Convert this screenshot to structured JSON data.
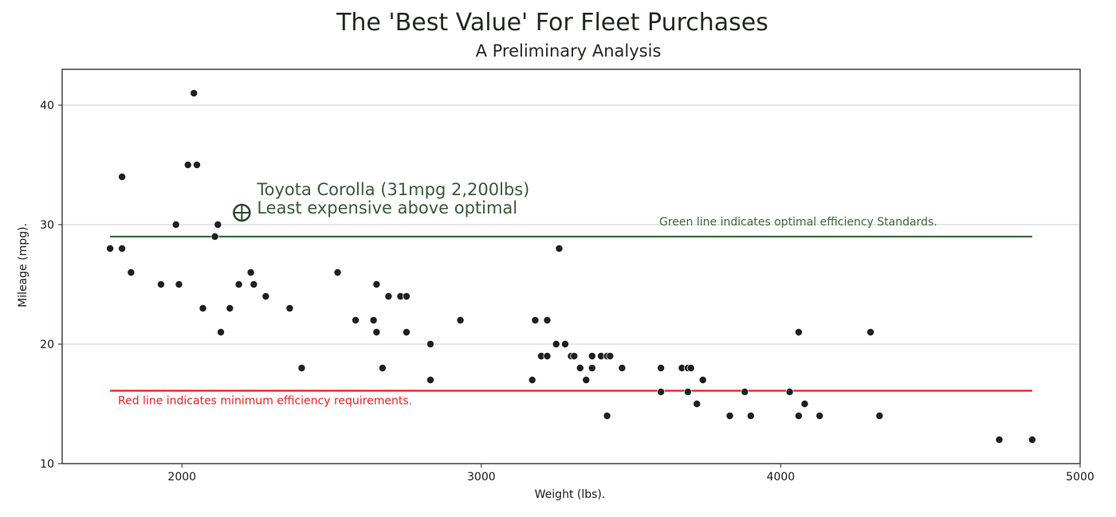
{
  "chart_data": {
    "type": "scatter",
    "title": "The 'Best Value' For Fleet Purchases",
    "subtitle": "A Preliminary Analysis",
    "xlabel": "Weight (lbs).",
    "ylabel": "Mileage (mpg).",
    "xlim": [
      1600,
      5000
    ],
    "ylim": [
      10,
      43
    ],
    "x_ticks": [
      2000,
      3000,
      4000,
      5000
    ],
    "y_ticks": [
      10,
      20,
      30,
      40
    ],
    "grid": "horizontal",
    "point_color": "#1f1f1f",
    "points": [
      {
        "x": 1760,
        "y": 28
      },
      {
        "x": 1800,
        "y": 34
      },
      {
        "x": 1800,
        "y": 28
      },
      {
        "x": 1830,
        "y": 26
      },
      {
        "x": 1930,
        "y": 25
      },
      {
        "x": 1980,
        "y": 30
      },
      {
        "x": 1990,
        "y": 25
      },
      {
        "x": 2020,
        "y": 35
      },
      {
        "x": 2040,
        "y": 41
      },
      {
        "x": 2050,
        "y": 35
      },
      {
        "x": 2070,
        "y": 23
      },
      {
        "x": 2110,
        "y": 29
      },
      {
        "x": 2120,
        "y": 30
      },
      {
        "x": 2130,
        "y": 21
      },
      {
        "x": 2160,
        "y": 23
      },
      {
        "x": 2190,
        "y": 25
      },
      {
        "x": 2230,
        "y": 26
      },
      {
        "x": 2240,
        "y": 25
      },
      {
        "x": 2280,
        "y": 24
      },
      {
        "x": 2360,
        "y": 23
      },
      {
        "x": 2400,
        "y": 18
      },
      {
        "x": 2520,
        "y": 26
      },
      {
        "x": 2580,
        "y": 22
      },
      {
        "x": 2640,
        "y": 22
      },
      {
        "x": 2650,
        "y": 25
      },
      {
        "x": 2650,
        "y": 21
      },
      {
        "x": 2670,
        "y": 18
      },
      {
        "x": 2690,
        "y": 24
      },
      {
        "x": 2730,
        "y": 24
      },
      {
        "x": 2750,
        "y": 24
      },
      {
        "x": 2750,
        "y": 21
      },
      {
        "x": 2830,
        "y": 20
      },
      {
        "x": 2830,
        "y": 17
      },
      {
        "x": 2930,
        "y": 22
      },
      {
        "x": 3170,
        "y": 17
      },
      {
        "x": 3180,
        "y": 22
      },
      {
        "x": 3200,
        "y": 19
      },
      {
        "x": 3220,
        "y": 22
      },
      {
        "x": 3220,
        "y": 19
      },
      {
        "x": 3250,
        "y": 20
      },
      {
        "x": 3260,
        "y": 28
      },
      {
        "x": 3280,
        "y": 20
      },
      {
        "x": 3300,
        "y": 19
      },
      {
        "x": 3310,
        "y": 19
      },
      {
        "x": 3330,
        "y": 18
      },
      {
        "x": 3350,
        "y": 17
      },
      {
        "x": 3370,
        "y": 19
      },
      {
        "x": 3370,
        "y": 18
      },
      {
        "x": 3400,
        "y": 19
      },
      {
        "x": 3420,
        "y": 19
      },
      {
        "x": 3420,
        "y": 14
      },
      {
        "x": 3430,
        "y": 19
      },
      {
        "x": 3470,
        "y": 18
      },
      {
        "x": 3600,
        "y": 18
      },
      {
        "x": 3600,
        "y": 16
      },
      {
        "x": 3670,
        "y": 18
      },
      {
        "x": 3690,
        "y": 16
      },
      {
        "x": 3690,
        "y": 18
      },
      {
        "x": 3700,
        "y": 18
      },
      {
        "x": 3720,
        "y": 15
      },
      {
        "x": 3740,
        "y": 17
      },
      {
        "x": 3830,
        "y": 14
      },
      {
        "x": 3880,
        "y": 16
      },
      {
        "x": 3900,
        "y": 14
      },
      {
        "x": 4030,
        "y": 16
      },
      {
        "x": 4060,
        "y": 21
      },
      {
        "x": 4060,
        "y": 14
      },
      {
        "x": 4080,
        "y": 15
      },
      {
        "x": 4130,
        "y": 14
      },
      {
        "x": 4300,
        "y": 21
      },
      {
        "x": 4330,
        "y": 14
      },
      {
        "x": 4730,
        "y": 12
      },
      {
        "x": 4840,
        "y": 12
      }
    ],
    "reference_lines": [
      {
        "label": "Green line indicates optimal efficiency Standards.",
        "y": 29,
        "x_start": 1760,
        "x_end": 4840,
        "color": "#3d6b3d"
      },
      {
        "label": "Red line indicates minimum efficiency requirements.",
        "y": 16.1,
        "x_start": 1760,
        "x_end": 4840,
        "color": "#ee1c1c"
      }
    ],
    "highlight": {
      "x": 2200,
      "y": 31,
      "label_line1": "Toyota Corolla (31mpg 2,200lbs)",
      "label_line2": "Least expensive above optimal",
      "color": "#2f4a2f"
    }
  }
}
